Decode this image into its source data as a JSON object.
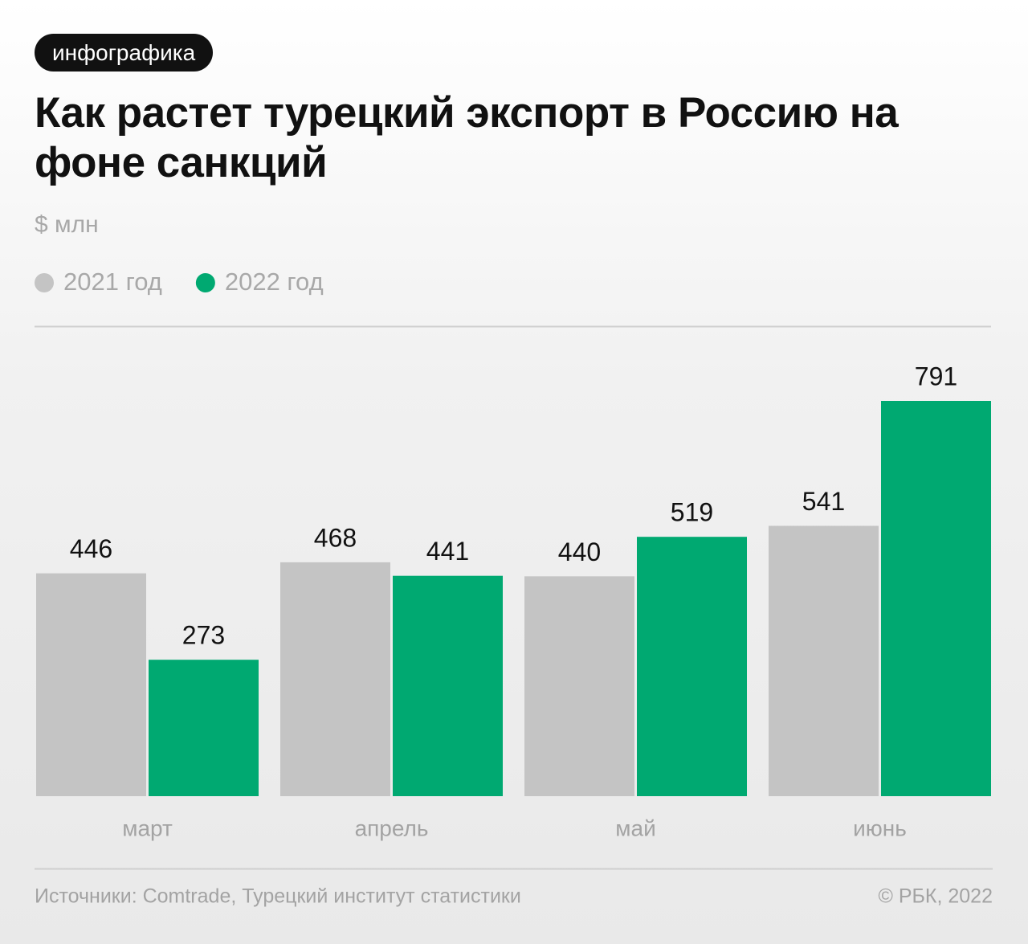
{
  "badge": "инфографика",
  "chart_data": {
    "type": "bar",
    "title": "Как растет турецкий экспорт в Россию на фоне санкций",
    "subtitle": "$ млн",
    "categories": [
      "март",
      "апрель",
      "май",
      "июнь"
    ],
    "series": [
      {
        "name": "2021 год",
        "color": "#c4c4c4",
        "values": [
          446,
          468,
          440,
          541
        ]
      },
      {
        "name": "2022 год",
        "color": "#00a971",
        "values": [
          273,
          441,
          519,
          791
        ]
      }
    ]
  },
  "footer": {
    "source": "Источники: Comtrade, Турецкий институт статистики",
    "credit": "© РБК, 2022"
  }
}
